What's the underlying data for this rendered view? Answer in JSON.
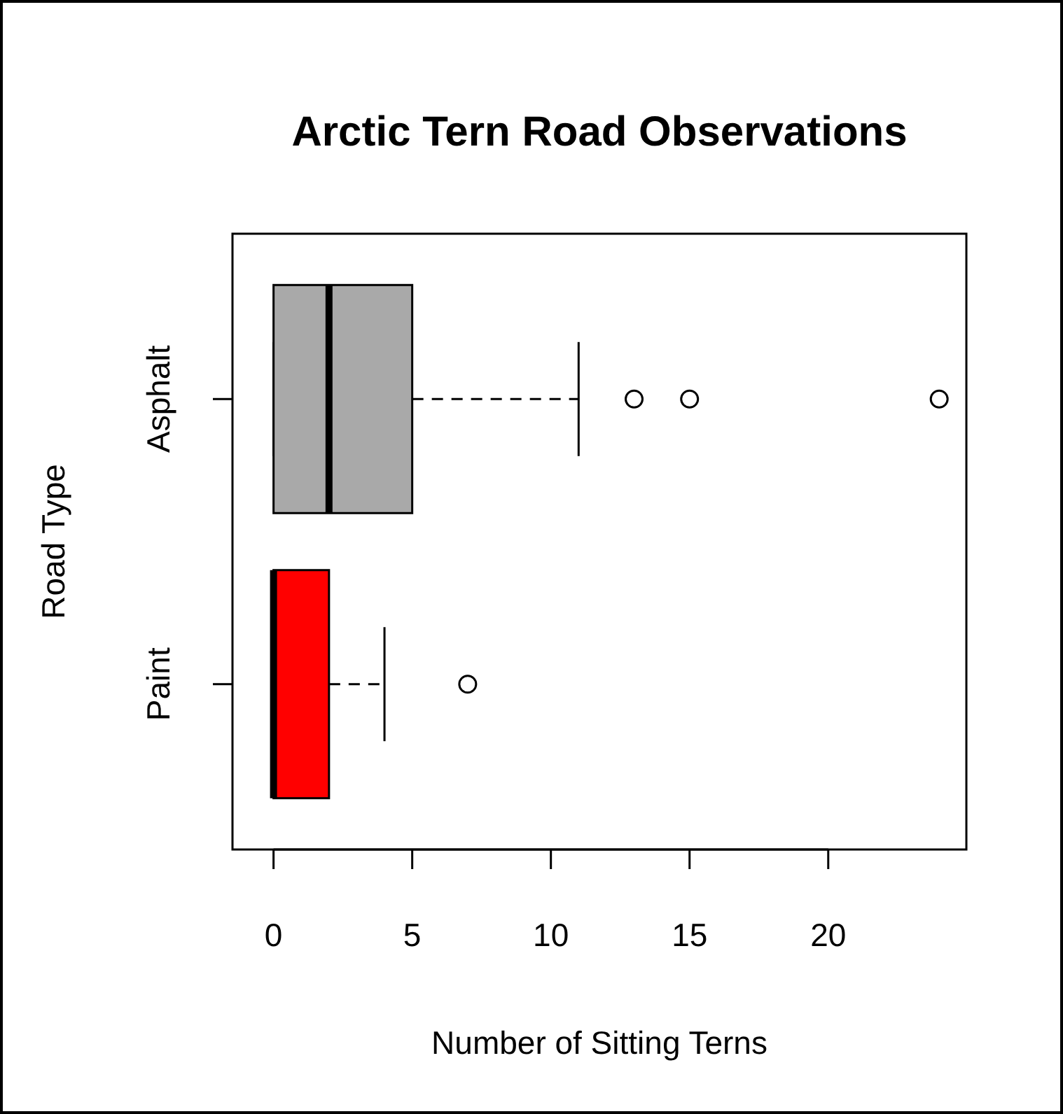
{
  "chart_data": {
    "type": "box",
    "orientation": "horizontal",
    "title": "Arctic Tern Road Observations",
    "xlabel": "Number of Sitting Terns",
    "ylabel": "Road Type",
    "categories": [
      "Asphalt",
      "Paint"
    ],
    "colors": [
      "#a9a9a9",
      "#ff0000"
    ],
    "boxes": [
      {
        "low": 0,
        "q1": 0,
        "median": 2,
        "q3": 5,
        "high": 11,
        "outliers": [
          13,
          15,
          24
        ]
      },
      {
        "low": 0,
        "q1": 0,
        "median": 0,
        "q3": 2,
        "high": 4,
        "outliers": [
          7
        ]
      }
    ],
    "xlim": [
      -1.48,
      24.98
    ],
    "xticks": [
      0,
      5,
      10,
      15,
      20
    ],
    "grid": false
  }
}
